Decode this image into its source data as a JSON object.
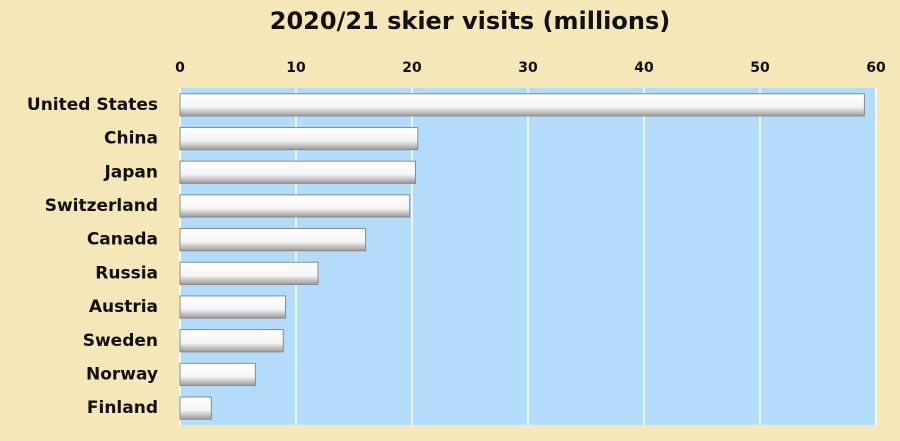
{
  "chart_data": {
    "type": "hbar",
    "title": "2020/21 skier visits (millions)",
    "categories": [
      "United States",
      "China",
      "Japan",
      "Switzerland",
      "Canada",
      "Russia",
      "Austria",
      "Sweden",
      "Norway",
      "Finland"
    ],
    "values": [
      59,
      20.5,
      20.3,
      19.8,
      16,
      11.9,
      9.1,
      8.9,
      6.5,
      2.7
    ],
    "color": "#ffffff",
    "xlim": [
      0,
      60
    ],
    "xticks": [
      0,
      10,
      20,
      30,
      40,
      50,
      60
    ],
    "grid": true
  }
}
